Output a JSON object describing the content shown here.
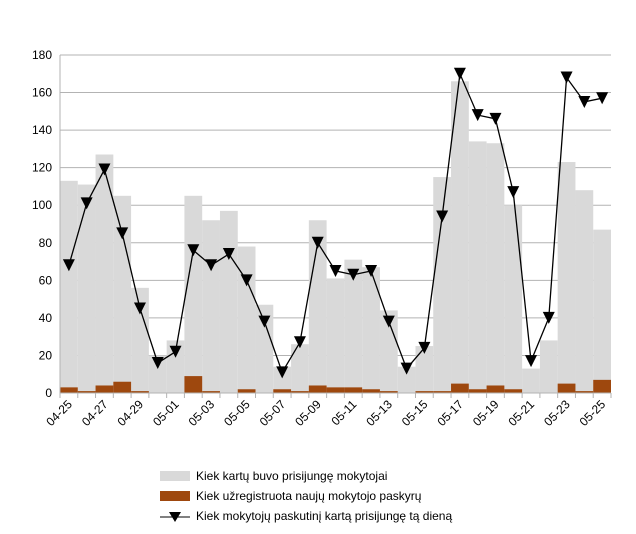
{
  "chart_data": {
    "type": "bar",
    "categories": [
      "04-25",
      "04-26",
      "04-27",
      "04-28",
      "04-29",
      "04-30",
      "05-01",
      "05-02",
      "05-03",
      "05-04",
      "05-05",
      "05-06",
      "05-07",
      "05-08",
      "05-09",
      "05-10",
      "05-11",
      "05-12",
      "05-13",
      "05-14",
      "05-15",
      "05-16",
      "05-17",
      "05-18",
      "05-19",
      "05-20",
      "05-21",
      "05-22",
      "05-23",
      "05-24",
      "05-25"
    ],
    "tick_labels": [
      "04-25",
      "04-27",
      "04-29",
      "05-01",
      "05-03",
      "05-05",
      "05-07",
      "05-09",
      "05-11",
      "05-13",
      "05-15",
      "05-17",
      "05-19",
      "05-21",
      "05-23",
      "05-25"
    ],
    "yticks": [
      0,
      20,
      40,
      60,
      80,
      100,
      120,
      140,
      160,
      180
    ],
    "ylim": [
      0,
      180
    ],
    "grid": true,
    "legend_position": "bottom",
    "series": [
      {
        "name": "Kiek kartų buvo prisijungę mokytojai",
        "type": "bar",
        "color": "#d9d9d9",
        "values": [
          113,
          111,
          127,
          105,
          56,
          20,
          28,
          105,
          92,
          97,
          78,
          47,
          14,
          26,
          92,
          61,
          71,
          67,
          44,
          14,
          25,
          115,
          166,
          134,
          133,
          100,
          13,
          28,
          123,
          108,
          87
        ]
      },
      {
        "name": "Kiek užregistruota naujų mokytojo paskyrų",
        "type": "bar",
        "color": "#9e480e",
        "values": [
          3,
          1,
          4,
          6,
          1,
          0,
          0,
          9,
          1,
          0,
          2,
          0,
          2,
          1,
          4,
          3,
          3,
          2,
          1,
          0,
          1,
          1,
          5,
          2,
          4,
          2,
          0,
          0,
          5,
          1,
          7
        ]
      },
      {
        "name": "Kiek mokytojų paskutinį kartą prisijungę tą dieną",
        "type": "line",
        "color": "#000000",
        "values": [
          68,
          101,
          119,
          85,
          45,
          16,
          22,
          76,
          68,
          74,
          60,
          38,
          11,
          27,
          80,
          65,
          63,
          65,
          38,
          13,
          24,
          94,
          170,
          148,
          146,
          107,
          17,
          40,
          168,
          155,
          157
        ]
      }
    ]
  }
}
